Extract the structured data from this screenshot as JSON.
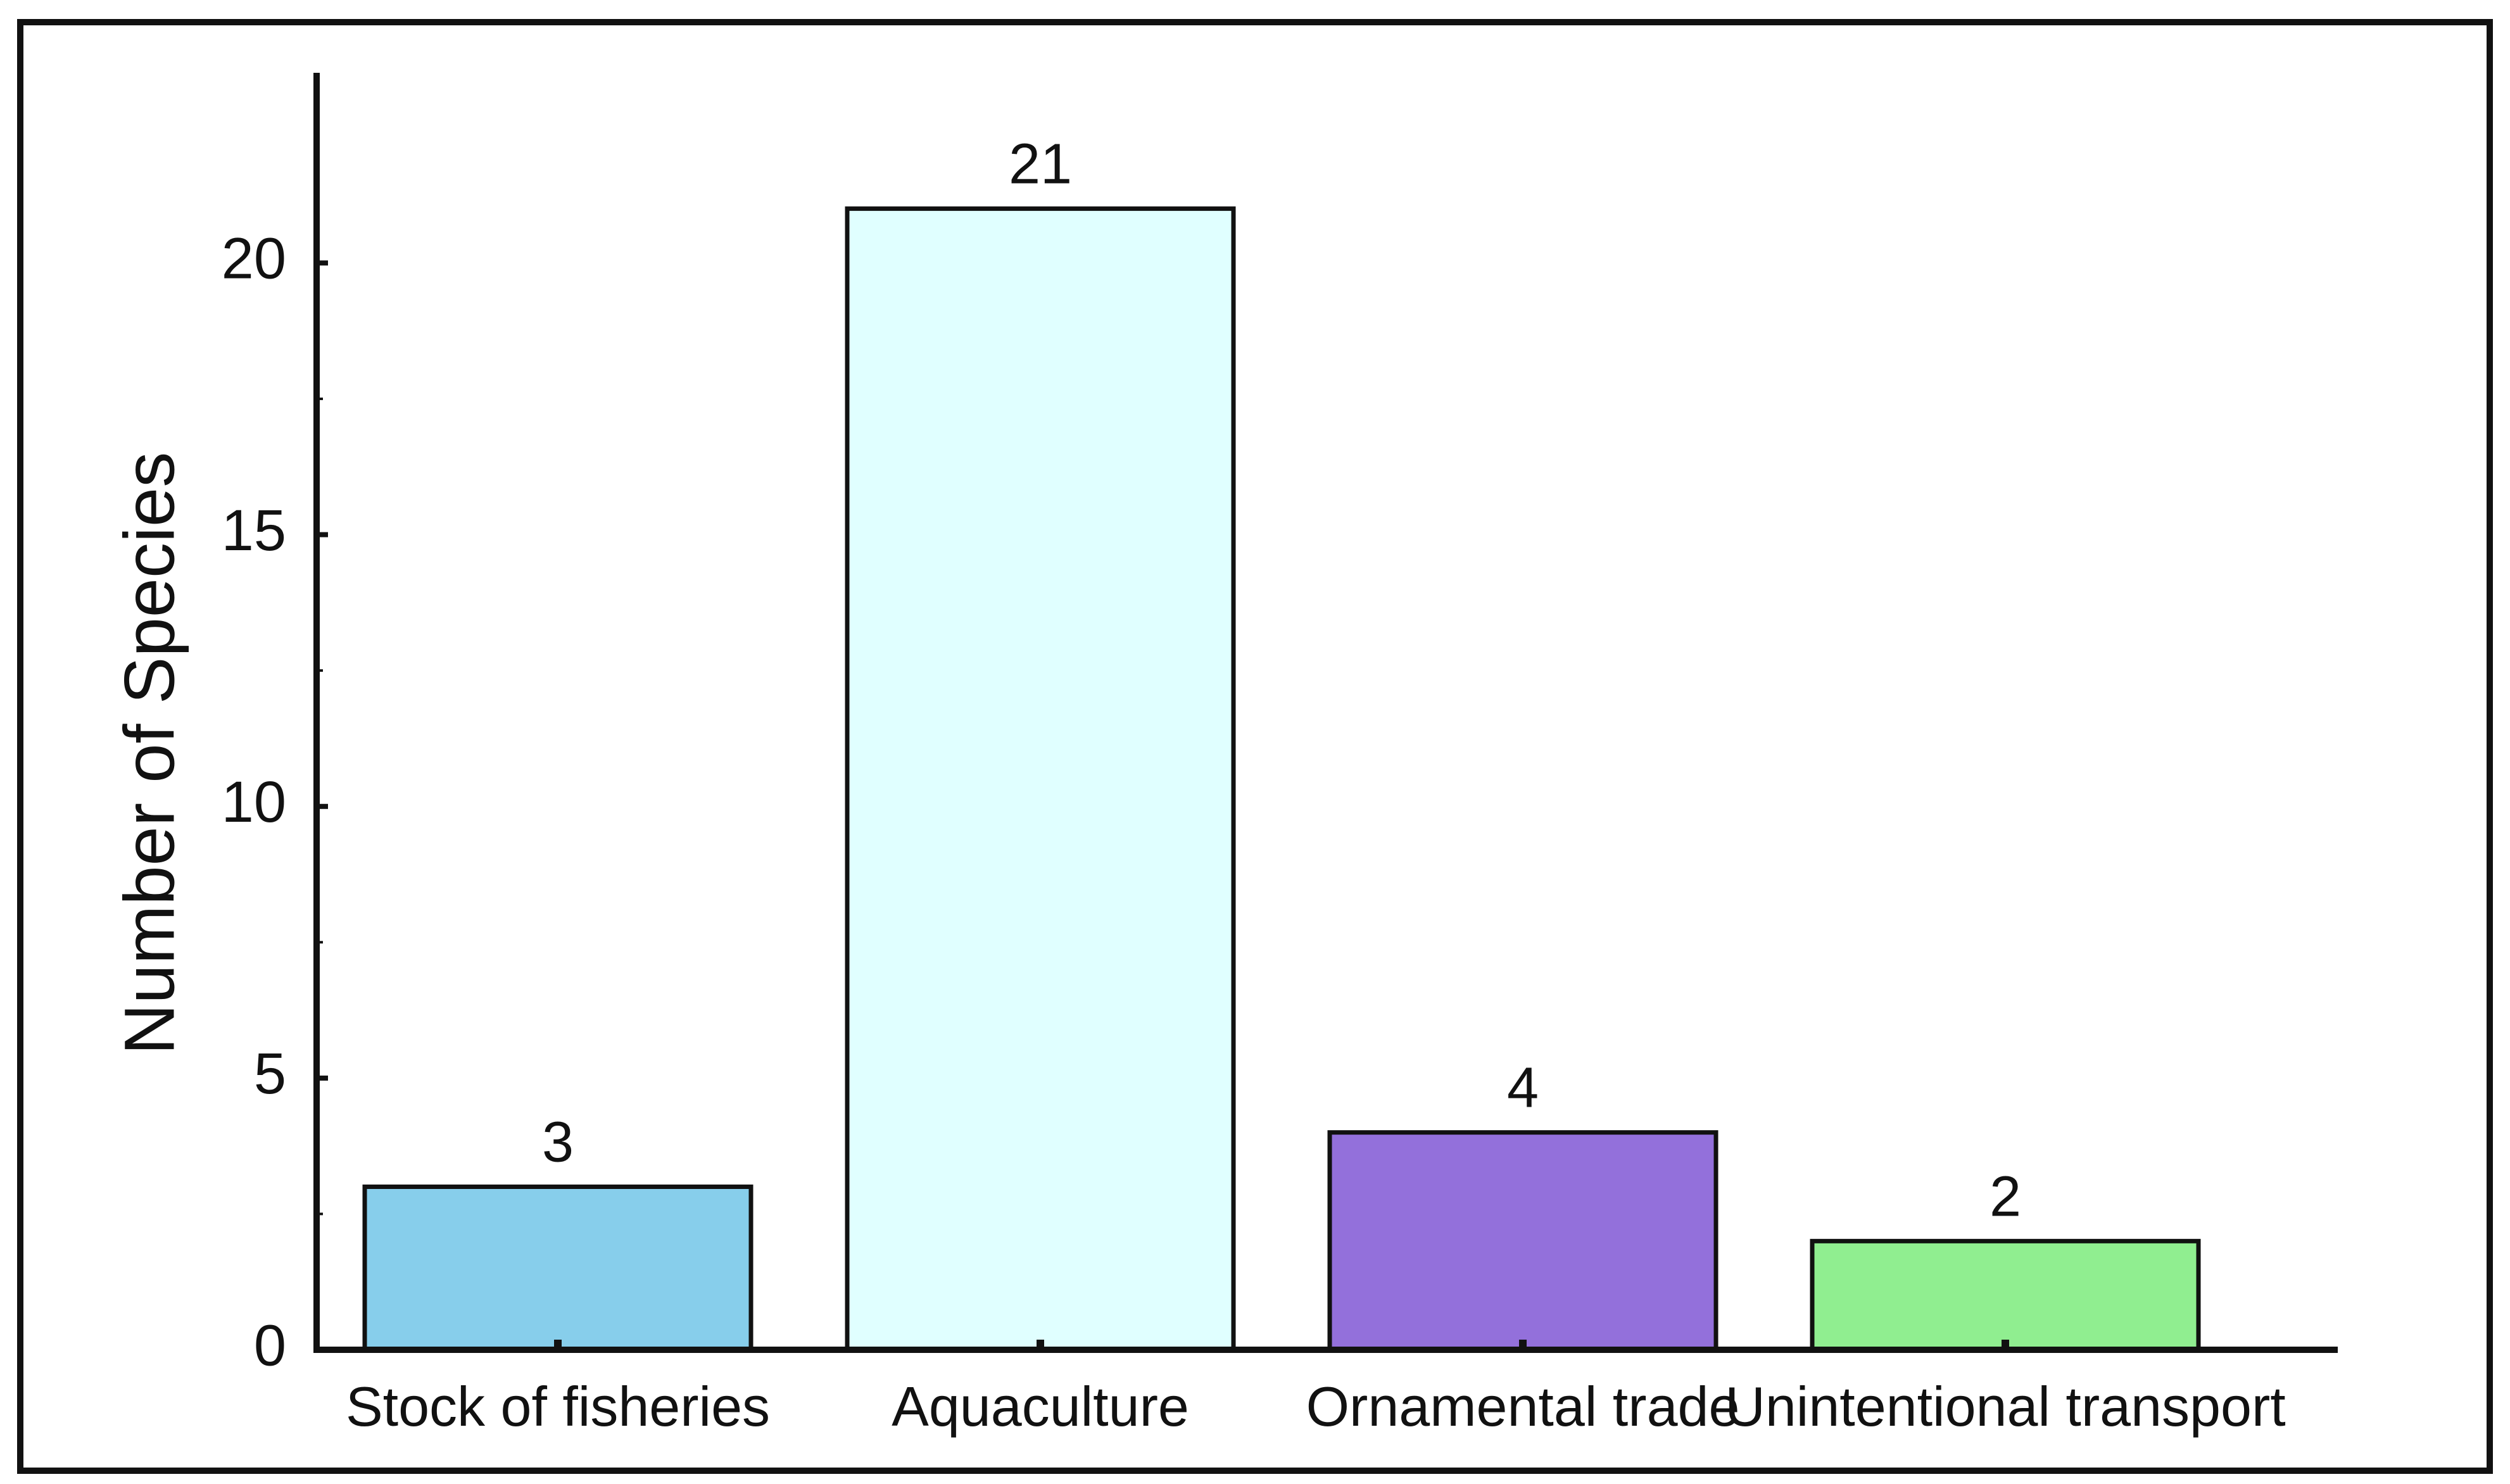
{
  "chart_data": {
    "type": "bar",
    "categories": [
      "Stock of fisheries",
      "Aquaculture",
      "Ornamental trade",
      "Unintentional transport"
    ],
    "values": [
      3,
      21,
      4,
      2
    ],
    "data_labels": [
      "3",
      "21",
      "4",
      "2"
    ],
    "title": "",
    "xlabel": "",
    "ylabel": "Number of Species",
    "ylim": [
      0,
      23.5
    ],
    "yticks": [
      0,
      5,
      10,
      15,
      20
    ],
    "ytick_labels": [
      "0",
      "5",
      "10",
      "15",
      "20"
    ],
    "grid": false,
    "legend": "none",
    "colors": [
      "#87ceeb",
      "#e0ffff",
      "#9370db",
      "#90ee90"
    ]
  }
}
